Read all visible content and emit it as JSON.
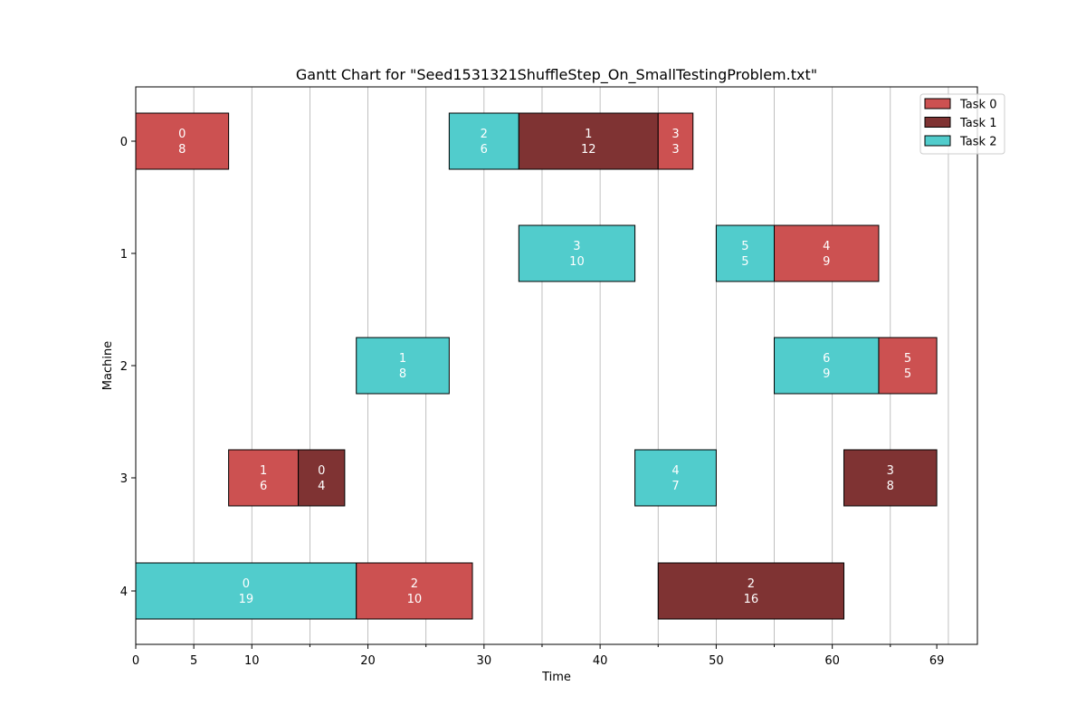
{
  "chart_data": {
    "type": "gantt",
    "title": "Gantt Chart for \"Seed1531321ShuffleStep_On_SmallTestingProblem.txt\"",
    "xlabel": "Time",
    "ylabel": "Machine",
    "xlim": [
      0,
      72.5
    ],
    "machines": [
      "0",
      "1",
      "2",
      "3",
      "4"
    ],
    "x_ticks_labeled": [
      0,
      5,
      10,
      20,
      30,
      40,
      50,
      60,
      69
    ],
    "x_ticks_minor": [
      15,
      25,
      35,
      45,
      55,
      65
    ],
    "grid_lines_x": [
      5,
      10,
      15,
      20,
      25,
      30,
      35,
      40,
      45,
      50,
      55,
      60,
      65,
      70
    ],
    "grid": "vertical",
    "legend_position": "top-right",
    "series": [
      {
        "name": "Task 0",
        "color": "#cc5151"
      },
      {
        "name": "Task 1",
        "color": "#7f3333"
      },
      {
        "name": "Task 2",
        "color": "#51cccc"
      }
    ],
    "bars": [
      {
        "machine": 0,
        "task": 0,
        "start": 0,
        "duration": 8,
        "label_top": "0",
        "label_bottom": "8"
      },
      {
        "machine": 0,
        "task": 2,
        "start": 27,
        "duration": 6,
        "label_top": "2",
        "label_bottom": "6"
      },
      {
        "machine": 0,
        "task": 1,
        "start": 33,
        "duration": 12,
        "label_top": "1",
        "label_bottom": "12"
      },
      {
        "machine": 0,
        "task": 0,
        "start": 45,
        "duration": 3,
        "label_top": "3",
        "label_bottom": "3"
      },
      {
        "machine": 1,
        "task": 2,
        "start": 33,
        "duration": 10,
        "label_top": "3",
        "label_bottom": "10"
      },
      {
        "machine": 1,
        "task": 2,
        "start": 50,
        "duration": 5,
        "label_top": "5",
        "label_bottom": "5"
      },
      {
        "machine": 1,
        "task": 0,
        "start": 55,
        "duration": 9,
        "label_top": "4",
        "label_bottom": "9"
      },
      {
        "machine": 2,
        "task": 2,
        "start": 19,
        "duration": 8,
        "label_top": "1",
        "label_bottom": "8"
      },
      {
        "machine": 2,
        "task": 2,
        "start": 55,
        "duration": 9,
        "label_top": "6",
        "label_bottom": "9"
      },
      {
        "machine": 2,
        "task": 0,
        "start": 64,
        "duration": 5,
        "label_top": "5",
        "label_bottom": "5"
      },
      {
        "machine": 3,
        "task": 0,
        "start": 8,
        "duration": 6,
        "label_top": "1",
        "label_bottom": "6"
      },
      {
        "machine": 3,
        "task": 1,
        "start": 14,
        "duration": 4,
        "label_top": "0",
        "label_bottom": "4"
      },
      {
        "machine": 3,
        "task": 2,
        "start": 43,
        "duration": 7,
        "label_top": "4",
        "label_bottom": "7"
      },
      {
        "machine": 3,
        "task": 1,
        "start": 61,
        "duration": 8,
        "label_top": "3",
        "label_bottom": "8"
      },
      {
        "machine": 4,
        "task": 2,
        "start": 0,
        "duration": 19,
        "label_top": "0",
        "label_bottom": "19"
      },
      {
        "machine": 4,
        "task": 0,
        "start": 19,
        "duration": 10,
        "label_top": "2",
        "label_bottom": "10"
      },
      {
        "machine": 4,
        "task": 1,
        "start": 45,
        "duration": 16,
        "label_top": "2",
        "label_bottom": "16"
      }
    ]
  }
}
